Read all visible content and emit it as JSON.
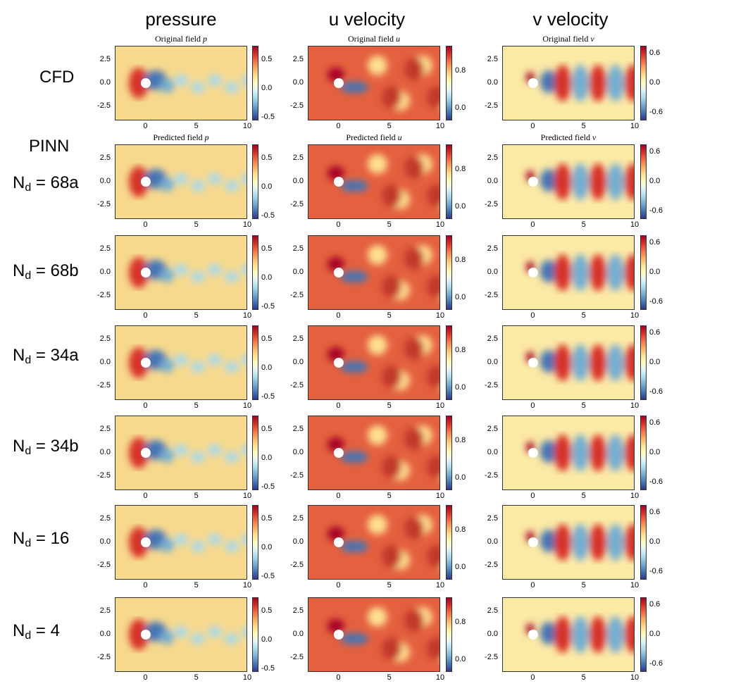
{
  "column_headers": [
    "pressure",
    "u velocity",
    "v velocity"
  ],
  "row_labels": [
    {
      "main": "CFD",
      "sub": "",
      "rest": ""
    },
    {
      "main": "N",
      "sub": "d",
      "rest": " = 68a",
      "prefix": "PINN"
    },
    {
      "main": "N",
      "sub": "d",
      "rest": " = 68b"
    },
    {
      "main": "N",
      "sub": "d",
      "rest": " = 34a"
    },
    {
      "main": "N",
      "sub": "d",
      "rest": " = 34b"
    },
    {
      "main": "N",
      "sub": "d",
      "rest": " = 16"
    },
    {
      "main": "N",
      "sub": "d",
      "rest": " = 4"
    }
  ],
  "panel_titles": {
    "original": [
      "Original field",
      "Original field",
      "Original field"
    ],
    "predicted": [
      "Predicted field",
      "Predicted field",
      "Predicted field"
    ],
    "variables": [
      "p",
      "u",
      "v"
    ]
  },
  "chart_data": {
    "type": "heatmap",
    "grid": {
      "rows": 7,
      "cols": 3
    },
    "x_ticks": [
      "0",
      "5",
      "10"
    ],
    "y_ticks": [
      "2.5",
      "0.0",
      "-2.5"
    ],
    "colormap": "RdYlBu_r",
    "colorbars": [
      {
        "variable": "p",
        "ticks": [
          "0.5",
          "0.0",
          "-0.5"
        ],
        "range": [
          -0.55,
          0.75
        ]
      },
      {
        "variable": "u",
        "ticks": [
          "0.8",
          "0.0"
        ],
        "range": [
          -0.25,
          1.35
        ]
      },
      {
        "variable": "v",
        "ticks": [
          "0.6",
          "0.0",
          "-0.6"
        ],
        "range": [
          -0.75,
          0.75
        ]
      }
    ],
    "cylinder_center": [
      0,
      0
    ],
    "xlim": [
      -3,
      10
    ],
    "ylim": [
      -4,
      4
    ]
  },
  "colors": {
    "max": "#a50026",
    "mid": "#ffffbf",
    "min": "#313695",
    "axis": "#333333"
  }
}
